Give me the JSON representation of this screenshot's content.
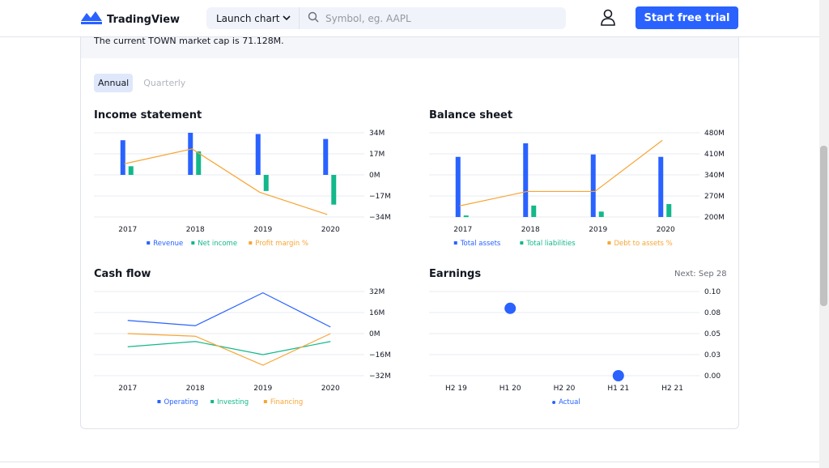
{
  "header": {
    "brand": "TradingView",
    "launch_chart": "Launch chart",
    "search_placeholder": "Symbol, eg. AAPL",
    "cta": "Start free trial",
    "accent": "#2962ff"
  },
  "banner": {
    "text": "The current TOWN market cap is 71.128M."
  },
  "tabs": [
    {
      "label": "Annual",
      "active": true
    },
    {
      "label": "Quarterly",
      "active": false
    }
  ],
  "sections": {
    "income": {
      "title": "Income statement"
    },
    "balance": {
      "title": "Balance sheet"
    },
    "cashflow": {
      "title": "Cash flow"
    },
    "earnings": {
      "title": "Earnings",
      "next": "Next: Sep 28"
    }
  },
  "chart_data": [
    {
      "id": "income",
      "type": "bar",
      "title": "Income statement",
      "categories": [
        "2017",
        "2018",
        "2019",
        "2020"
      ],
      "y_ticks": [
        "34M",
        "17M",
        "0M",
        "−17M",
        "−34M"
      ],
      "ylim": [
        -34,
        34
      ],
      "series": [
        {
          "name": "Revenue",
          "kind": "bar",
          "color": "#2962ff",
          "values": [
            28,
            34,
            33,
            29
          ]
        },
        {
          "name": "Net income",
          "kind": "bar",
          "color": "#12b88a",
          "values": [
            7,
            19,
            -13,
            -24
          ]
        },
        {
          "name": "Profit margin %",
          "kind": "line",
          "color": "#f7a535",
          "values": [
            9,
            21,
            -14,
            -32
          ]
        }
      ]
    },
    {
      "id": "balance",
      "type": "bar",
      "title": "Balance sheet",
      "categories": [
        "2017",
        "2018",
        "2019",
        "2020"
      ],
      "y_ticks": [
        "480M",
        "410M",
        "340M",
        "270M",
        "200M"
      ],
      "ylim": [
        200,
        480
      ],
      "series": [
        {
          "name": "Total assets",
          "kind": "bar",
          "color": "#2962ff",
          "values": [
            400,
            445,
            408,
            400
          ]
        },
        {
          "name": "Total liabilities",
          "kind": "bar",
          "color": "#12b88a",
          "values": [
            205,
            238,
            218,
            243
          ]
        },
        {
          "name": "Debt to assets %",
          "kind": "line",
          "color": "#f7a535",
          "values": [
            237,
            285,
            285,
            455
          ]
        }
      ]
    },
    {
      "id": "cashflow",
      "type": "line",
      "title": "Cash flow",
      "categories": [
        "2017",
        "2018",
        "2019",
        "2020"
      ],
      "y_ticks": [
        "32M",
        "16M",
        "0M",
        "−16M",
        "−32M"
      ],
      "ylim": [
        -32,
        32
      ],
      "series": [
        {
          "name": "Operating",
          "kind": "line",
          "color": "#2962ff",
          "values": [
            10,
            6,
            31,
            5
          ]
        },
        {
          "name": "Investing",
          "kind": "line",
          "color": "#12b88a",
          "values": [
            -10,
            -6,
            -16,
            -6
          ]
        },
        {
          "name": "Financing",
          "kind": "line",
          "color": "#f7a535",
          "values": [
            0,
            -2,
            -24,
            0
          ]
        }
      ]
    },
    {
      "id": "earnings",
      "type": "scatter",
      "title": "Earnings",
      "categories": [
        "H2 19",
        "H1 20",
        "H2 20",
        "H1 21",
        "H2 21"
      ],
      "y_ticks": [
        "0.10",
        "0.08",
        "0.05",
        "0.03",
        "0.00"
      ],
      "ylim": [
        0,
        0.1
      ],
      "series": [
        {
          "name": "Actual",
          "kind": "dot",
          "color": "#2962ff",
          "values": [
            null,
            0.08,
            null,
            0.0,
            null
          ]
        }
      ]
    }
  ]
}
